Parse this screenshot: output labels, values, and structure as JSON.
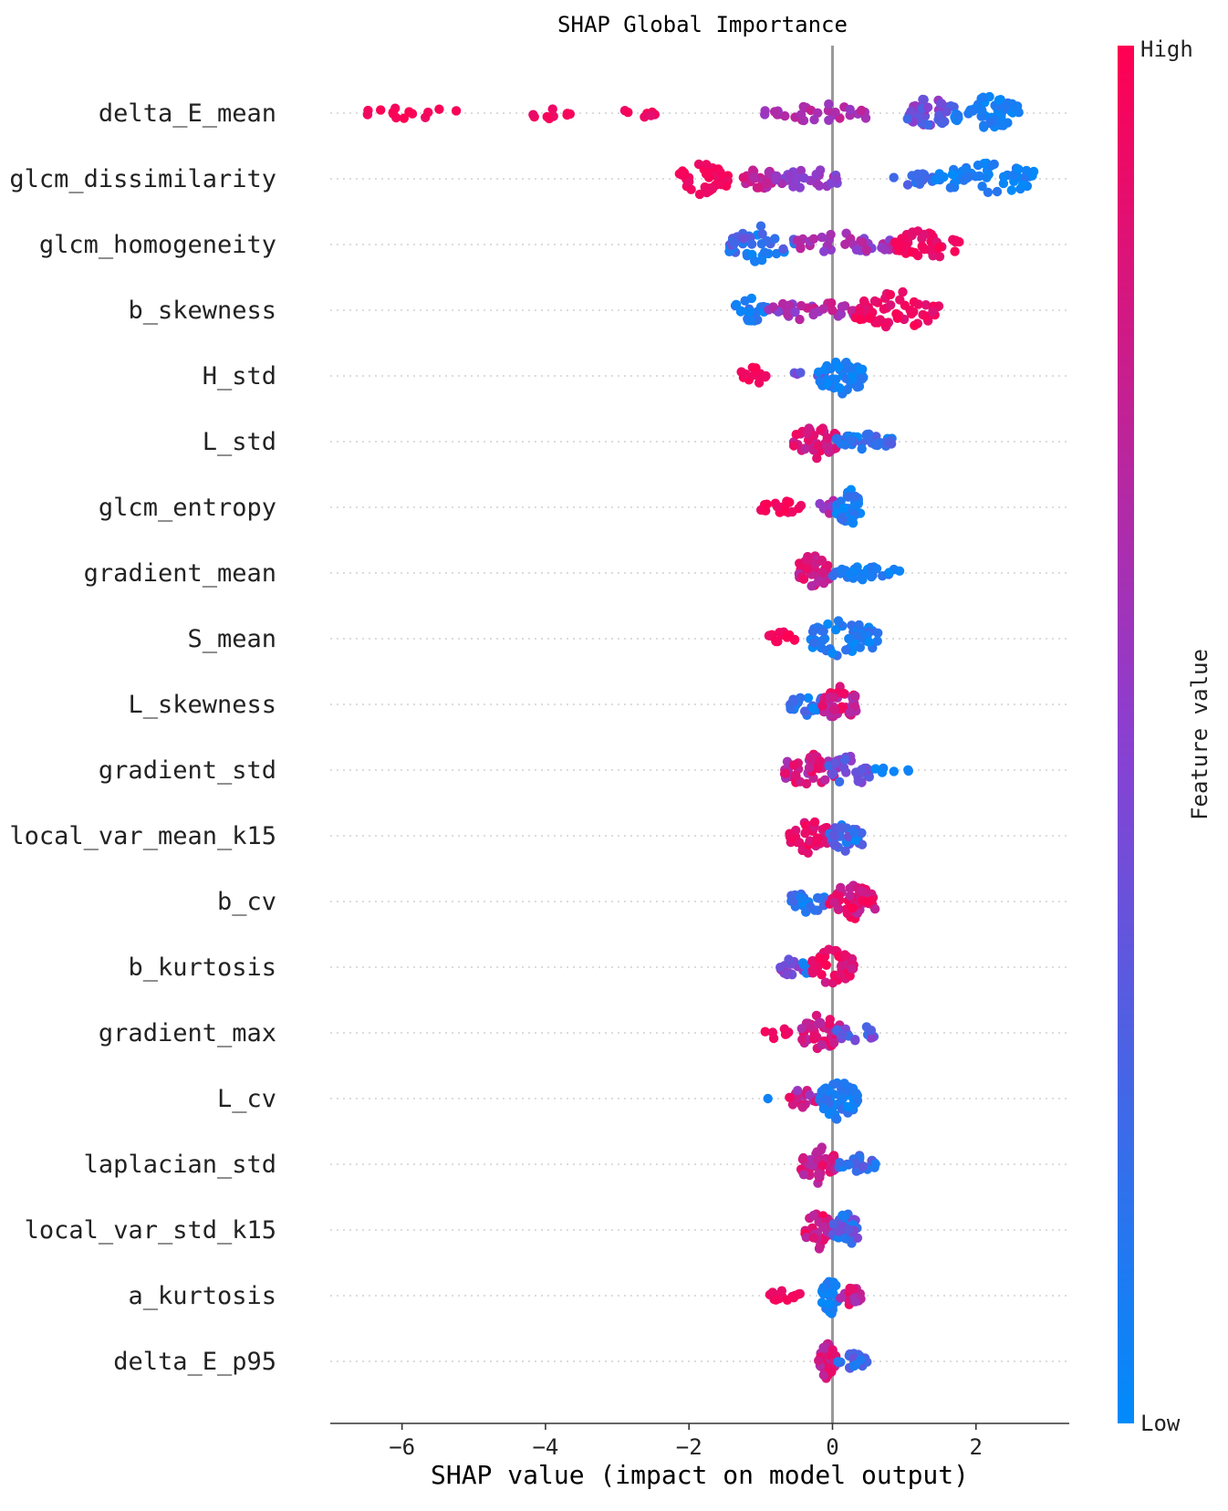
{
  "chart_data": {
    "type": "scatter",
    "subtype": "shap-beeswarm",
    "title": "SHAP Global Importance",
    "xlabel": "SHAP value (impact on model output)",
    "xlim": [
      -7,
      3.3
    ],
    "xticks": [
      -6,
      -4,
      -2,
      0,
      2
    ],
    "xtick_labels": [
      "−6",
      "−4",
      "−2",
      "0",
      "2"
    ],
    "colorbar": {
      "label": "Feature value",
      "high_label": "High",
      "low_label": "Low",
      "high_color": "#ff0052",
      "mid_color": "#8b3fd0",
      "low_color": "#008bfb"
    },
    "features": [
      {
        "name": "delta_E_mean",
        "clusters": [
          {
            "lo": -6.5,
            "hi": -5.2,
            "n": 14,
            "v": [
              0.92,
              1.0
            ],
            "spread": 7
          },
          {
            "lo": -4.3,
            "hi": -3.4,
            "n": 9,
            "v": [
              0.88,
              0.98
            ],
            "spread": 8
          },
          {
            "lo": -3.0,
            "hi": -2.4,
            "n": 7,
            "v": [
              0.88,
              0.98
            ],
            "spread": 6
          },
          {
            "lo": -0.95,
            "hi": 0.6,
            "n": 30,
            "v": [
              0.55,
              0.75
            ],
            "spread": 11
          },
          {
            "lo": 1.0,
            "hi": 1.7,
            "n": 42,
            "v": [
              0.2,
              0.6
            ],
            "spread": 20
          },
          {
            "lo": 1.7,
            "hi": 2.6,
            "n": 55,
            "v": [
              0.0,
              0.15
            ],
            "spread": 20
          }
        ]
      },
      {
        "name": "glcm_dissimilarity",
        "clusters": [
          {
            "lo": -2.2,
            "hi": -1.45,
            "n": 42,
            "v": [
              0.9,
              1.0
            ],
            "spread": 18
          },
          {
            "lo": -1.25,
            "hi": -0.8,
            "n": 30,
            "v": [
              0.6,
              0.85
            ],
            "spread": 14
          },
          {
            "lo": -0.8,
            "hi": 0.15,
            "n": 30,
            "v": [
              0.4,
              0.65
            ],
            "spread": 12
          },
          {
            "lo": 0.85,
            "hi": 1.4,
            "n": 14,
            "v": [
              0.0,
              0.3
            ],
            "spread": 8
          },
          {
            "lo": 1.4,
            "hi": 2.9,
            "n": 55,
            "v": [
              0.0,
              0.15
            ],
            "spread": 18
          }
        ]
      },
      {
        "name": "glcm_homogeneity",
        "clusters": [
          {
            "lo": -1.45,
            "hi": -0.5,
            "n": 45,
            "v": [
              0.0,
              0.4
            ],
            "spread": 22
          },
          {
            "lo": -0.5,
            "hi": 0.8,
            "n": 40,
            "v": [
              0.45,
              0.75
            ],
            "spread": 14
          },
          {
            "lo": 0.8,
            "hi": 1.8,
            "n": 48,
            "v": [
              0.85,
              1.0
            ],
            "spread": 18
          }
        ]
      },
      {
        "name": "b_skewness",
        "clusters": [
          {
            "lo": -1.4,
            "hi": -0.9,
            "n": 25,
            "v": [
              0.0,
              0.2
            ],
            "spread": 14
          },
          {
            "lo": -0.9,
            "hi": 0.3,
            "n": 35,
            "v": [
              0.45,
              0.8
            ],
            "spread": 12
          },
          {
            "lo": 0.3,
            "hi": 1.5,
            "n": 55,
            "v": [
              0.85,
              1.0
            ],
            "spread": 22
          }
        ]
      },
      {
        "name": "H_std",
        "clusters": [
          {
            "lo": -1.3,
            "hi": -0.9,
            "n": 14,
            "v": [
              0.92,
              1.0
            ],
            "spread": 10
          },
          {
            "lo": -0.6,
            "hi": -0.1,
            "n": 7,
            "v": [
              0.3,
              0.5
            ],
            "spread": 6
          },
          {
            "lo": -0.2,
            "hi": 0.45,
            "n": 55,
            "v": [
              0.0,
              0.15
            ],
            "spread": 22
          }
        ]
      },
      {
        "name": "L_std",
        "clusters": [
          {
            "lo": -0.55,
            "hi": 0.05,
            "n": 38,
            "v": [
              0.7,
              0.95
            ],
            "spread": 22
          },
          {
            "lo": 0.05,
            "hi": 0.85,
            "n": 32,
            "v": [
              0.0,
              0.3
            ],
            "spread": 10
          }
        ]
      },
      {
        "name": "glcm_entropy",
        "clusters": [
          {
            "lo": -1.0,
            "hi": -0.4,
            "n": 20,
            "v": [
              0.85,
              1.0
            ],
            "spread": 8
          },
          {
            "lo": -0.2,
            "hi": 0.1,
            "n": 12,
            "v": [
              0.5,
              0.75
            ],
            "spread": 10
          },
          {
            "lo": 0.05,
            "hi": 0.4,
            "n": 45,
            "v": [
              0.0,
              0.2
            ],
            "spread": 22
          }
        ]
      },
      {
        "name": "gradient_mean",
        "clusters": [
          {
            "lo": -0.5,
            "hi": -0.05,
            "n": 45,
            "v": [
              0.65,
              0.95
            ],
            "spread": 22
          },
          {
            "lo": 0.0,
            "hi": 0.95,
            "n": 34,
            "v": [
              0.0,
              0.2
            ],
            "spread": 8
          }
        ]
      },
      {
        "name": "S_mean",
        "clusters": [
          {
            "lo": -0.9,
            "hi": -0.5,
            "n": 16,
            "v": [
              0.92,
              1.0
            ],
            "spread": 8
          },
          {
            "lo": -0.35,
            "hi": 0.65,
            "n": 55,
            "v": [
              0.0,
              0.2
            ],
            "spread": 22
          }
        ]
      },
      {
        "name": "L_skewness",
        "clusters": [
          {
            "lo": -0.6,
            "hi": -0.1,
            "n": 22,
            "v": [
              0.0,
              0.3
            ],
            "spread": 14
          },
          {
            "lo": -0.15,
            "hi": 0.35,
            "n": 50,
            "v": [
              0.6,
              1.0
            ],
            "spread": 22
          }
        ]
      },
      {
        "name": "gradient_std",
        "clusters": [
          {
            "lo": -0.7,
            "hi": 0.05,
            "n": 40,
            "v": [
              0.6,
              0.95
            ],
            "spread": 20
          },
          {
            "lo": -0.05,
            "hi": 0.55,
            "n": 32,
            "v": [
              0.2,
              0.6
            ],
            "spread": 20
          },
          {
            "lo": 0.55,
            "hi": 1.1,
            "n": 6,
            "v": [
              0.0,
              0.1
            ],
            "spread": 4
          }
        ]
      },
      {
        "name": "local_var_mean_k15",
        "clusters": [
          {
            "lo": -0.6,
            "hi": -0.05,
            "n": 40,
            "v": [
              0.8,
              1.0
            ],
            "spread": 20
          },
          {
            "lo": -0.05,
            "hi": 0.45,
            "n": 42,
            "v": [
              0.0,
              0.4
            ],
            "spread": 20
          }
        ]
      },
      {
        "name": "b_cv",
        "clusters": [
          {
            "lo": -0.6,
            "hi": -0.05,
            "n": 30,
            "v": [
              0.0,
              0.3
            ],
            "spread": 14
          },
          {
            "lo": -0.05,
            "hi": 0.6,
            "n": 48,
            "v": [
              0.7,
              1.0
            ],
            "spread": 22
          }
        ]
      },
      {
        "name": "b_kurtosis",
        "clusters": [
          {
            "lo": -0.8,
            "hi": -0.4,
            "n": 16,
            "v": [
              0.35,
              0.6
            ],
            "spread": 10
          },
          {
            "lo": -0.5,
            "hi": -0.3,
            "n": 8,
            "v": [
              0.0,
              0.15
            ],
            "spread": 14
          },
          {
            "lo": -0.3,
            "hi": 0.3,
            "n": 48,
            "v": [
              0.75,
              1.0
            ],
            "spread": 22
          }
        ]
      },
      {
        "name": "gradient_max",
        "clusters": [
          {
            "lo": -0.95,
            "hi": -0.6,
            "n": 7,
            "v": [
              0.9,
              1.0
            ],
            "spread": 8
          },
          {
            "lo": -0.45,
            "hi": 0.1,
            "n": 42,
            "v": [
              0.65,
              0.95
            ],
            "spread": 22
          },
          {
            "lo": 0.05,
            "hi": 0.6,
            "n": 24,
            "v": [
              0.2,
              0.55
            ],
            "spread": 12
          }
        ]
      },
      {
        "name": "L_cv",
        "clusters": [
          {
            "lo": -0.9,
            "hi": -0.85,
            "n": 1,
            "v": [
              0.05,
              0.05
            ],
            "spread": 0
          },
          {
            "lo": -0.6,
            "hi": -0.2,
            "n": 18,
            "v": [
              0.45,
              0.95
            ],
            "spread": 12
          },
          {
            "lo": -0.2,
            "hi": 0.35,
            "n": 55,
            "v": [
              0.0,
              0.2
            ],
            "spread": 24
          }
        ]
      },
      {
        "name": "laplacian_std",
        "clusters": [
          {
            "lo": -0.45,
            "hi": 0.05,
            "n": 42,
            "v": [
              0.6,
              0.95
            ],
            "spread": 22
          },
          {
            "lo": 0.05,
            "hi": 0.6,
            "n": 28,
            "v": [
              0.05,
              0.35
            ],
            "spread": 12
          }
        ]
      },
      {
        "name": "local_var_std_k15",
        "clusters": [
          {
            "lo": -0.4,
            "hi": 0.0,
            "n": 40,
            "v": [
              0.65,
              1.0
            ],
            "spread": 22
          },
          {
            "lo": 0.0,
            "hi": 0.35,
            "n": 38,
            "v": [
              0.05,
              0.5
            ],
            "spread": 22
          }
        ]
      },
      {
        "name": "a_kurtosis",
        "clusters": [
          {
            "lo": -0.9,
            "hi": -0.4,
            "n": 14,
            "v": [
              0.9,
              1.0
            ],
            "spread": 8
          },
          {
            "lo": -0.15,
            "hi": 0.1,
            "n": 30,
            "v": [
              0.0,
              0.15
            ],
            "spread": 22
          },
          {
            "lo": 0.1,
            "hi": 0.4,
            "n": 20,
            "v": [
              0.6,
              0.95
            ],
            "spread": 12
          }
        ]
      },
      {
        "name": "delta_E_p95",
        "clusters": [
          {
            "lo": -0.2,
            "hi": 0.05,
            "n": 40,
            "v": [
              0.65,
              1.0
            ],
            "spread": 22
          },
          {
            "lo": 0.05,
            "hi": 0.5,
            "n": 24,
            "v": [
              0.05,
              0.4
            ],
            "spread": 10
          }
        ]
      }
    ]
  }
}
